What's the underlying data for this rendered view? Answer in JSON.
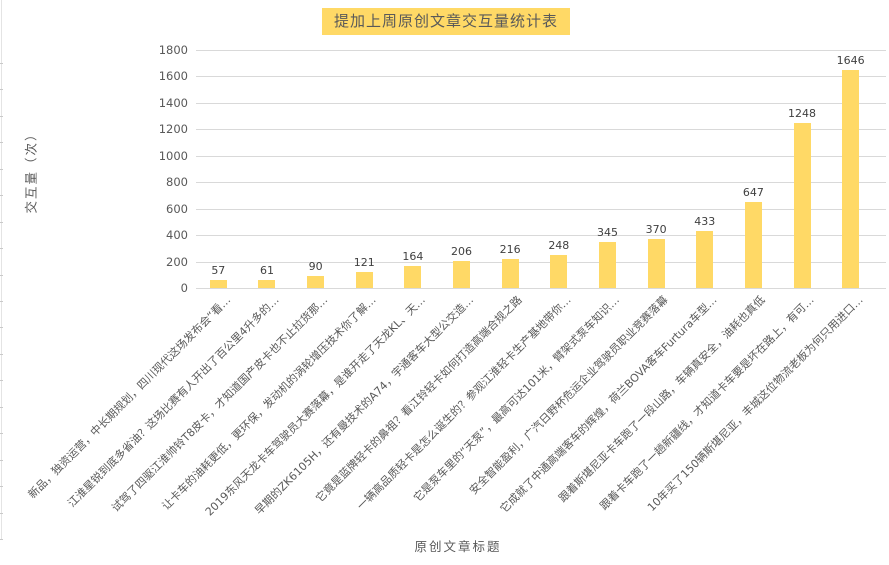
{
  "chart_data": {
    "type": "bar",
    "title": "提加上周原创文章交互量统计表",
    "xlabel": "原创文章标题",
    "ylabel": "交互量（次）",
    "categories": [
      "新品，独资运营，中长期规划，四川现代这场发布会“看…",
      "江淮星锐到底多省油？这场比赛有人开出了百公里4升多的…",
      "试驾了四驱江淮帅铃T8皮卡，才知道国产皮卡也不止拉货那…",
      "让卡车的油耗更低，更环保，发动机的涡轮增压技术你了解…",
      "2019东风天龙卡车驾驶员大赛落幕，是谁开走了天龙KL、天…",
      "早期的ZK6105H，还有曼技术的A74，宇通客车大型公交造…",
      "它竟是蓝牌轻卡的鼻祖？看江铃轻卡如何打造高端合规之路",
      "一辆高品质轻卡是怎么诞生的？参观江淮轻卡生产基地带你…",
      "它是泵车里的“天泵”，最高可达101米，臂架式泵车知识…",
      "安全智能盈利，广汽日野杯危运企业驾驶员职业竞赛落幕",
      "它成就了中通高端客车的辉煌，荷兰BOVA客车Furtura车型…",
      "跟着斯堪尼亚卡车跑了一段山路，车辆真安全，油耗也真低",
      "跟着卡车跑了一趟新疆线，才知道卡车要是坏在路上，有可…",
      "10年买了150辆斯堪尼亚，丰城这位物流老板为何只用进口…"
    ],
    "values": [
      57,
      61,
      90,
      121,
      164,
      206,
      216,
      248,
      345,
      370,
      433,
      647,
      1248,
      1646
    ],
    "ylim": [
      0,
      1800
    ],
    "yticks": [
      0,
      200,
      400,
      600,
      800,
      1000,
      1200,
      1400,
      1600,
      1800
    ],
    "grid": true,
    "legend": false,
    "colors": {
      "bar": "#FFD966",
      "title_highlight": "#FFD966",
      "title_text": "#595959",
      "gridline": "#D9D9D9",
      "axis_text": "#595959",
      "value_label": "#404040"
    }
  }
}
